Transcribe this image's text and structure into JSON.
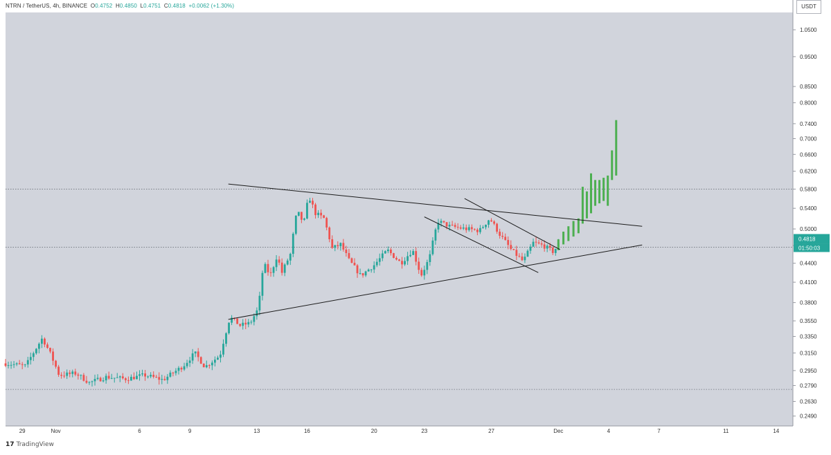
{
  "header": {
    "pair": "NTRN / TetherUS, 4h, BINANCE",
    "open_label": "O",
    "open": "0.4752",
    "high_label": "H",
    "high": "0.4850",
    "low_label": "L",
    "low": "0.4751",
    "close_label": "C",
    "close": "0.4818",
    "change": "+0.0062 (+1.30%)"
  },
  "currency_button": "USDT",
  "current_price_label": "0.4818",
  "countdown_label": "01:50:03",
  "footer": {
    "logo_mark": "17",
    "brand": "TradingView"
  },
  "colors": {
    "background": "#d1d4dc",
    "up": "#26a69a",
    "down": "#ef5350",
    "breakout": "#4caf50",
    "line": "#1a1a1a",
    "price_tag": "#26a69a"
  },
  "chart_data": {
    "type": "candlestick",
    "title": "NTRN / TetherUS, 4h, BINANCE",
    "scale": "log",
    "ylim": [
      0.24,
      1.12
    ],
    "y_ticks": [
      "1.0500",
      "0.9500",
      "0.8500",
      "0.8000",
      "0.7400",
      "0.7000",
      "0.6600",
      "0.6200",
      "0.5800",
      "0.5400",
      "0.5000",
      "0.4700",
      "0.4400",
      "0.4100",
      "0.3800",
      "0.3550",
      "0.3350",
      "0.3150",
      "0.2950",
      "0.2790",
      "0.2630",
      "0.2490"
    ],
    "x_ticks": [
      {
        "label": "29",
        "day": -2
      },
      {
        "label": "Nov",
        "day": 0
      },
      {
        "label": "6",
        "day": 5
      },
      {
        "label": "9",
        "day": 8
      },
      {
        "label": "13",
        "day": 12
      },
      {
        "label": "16",
        "day": 15
      },
      {
        "label": "20",
        "day": 19
      },
      {
        "label": "23",
        "day": 22
      },
      {
        "label": "27",
        "day": 26
      },
      {
        "label": "Dec",
        "day": 30
      },
      {
        "label": "4",
        "day": 33
      },
      {
        "label": "7",
        "day": 36
      },
      {
        "label": "11",
        "day": 40
      },
      {
        "label": "14",
        "day": 43
      }
    ],
    "x_range_days": [
      -3,
      44
    ],
    "horizontal_levels": [
      0.58,
      0.467,
      0.275
    ],
    "trendlines": [
      {
        "name": "triangle-upper",
        "from": [
          10.3,
          0.591
        ],
        "to": [
          35.0,
          0.505
        ]
      },
      {
        "name": "triangle-lower",
        "from": [
          10.3,
          0.357
        ],
        "to": [
          35.0,
          0.471
        ]
      },
      {
        "name": "channel-upper",
        "from": [
          24.4,
          0.56
        ],
        "to": [
          30.1,
          0.463
        ]
      },
      {
        "name": "channel-lower",
        "from": [
          22.0,
          0.523
        ],
        "to": [
          28.8,
          0.425
        ]
      }
    ],
    "breakout_bars": [
      {
        "day": 30.0,
        "low": 0.462,
        "high": 0.481
      },
      {
        "day": 30.3,
        "low": 0.472,
        "high": 0.495
      },
      {
        "day": 30.6,
        "low": 0.478,
        "high": 0.505
      },
      {
        "day": 30.9,
        "low": 0.486,
        "high": 0.515
      },
      {
        "day": 31.2,
        "low": 0.492,
        "high": 0.52
      },
      {
        "day": 31.45,
        "low": 0.51,
        "high": 0.585
      },
      {
        "day": 31.7,
        "low": 0.52,
        "high": 0.575
      },
      {
        "day": 31.95,
        "low": 0.53,
        "high": 0.615
      },
      {
        "day": 32.2,
        "low": 0.545,
        "high": 0.6
      },
      {
        "day": 32.45,
        "low": 0.55,
        "high": 0.6
      },
      {
        "day": 32.7,
        "low": 0.555,
        "high": 0.605
      },
      {
        "day": 32.95,
        "low": 0.545,
        "high": 0.61
      },
      {
        "day": 33.2,
        "low": 0.6,
        "high": 0.67
      },
      {
        "day": 33.45,
        "low": 0.61,
        "high": 0.75
      }
    ],
    "anchors": [
      [
        -3.0,
        0.303
      ],
      [
        -1.8,
        0.3
      ],
      [
        -0.8,
        0.333
      ],
      [
        -0.3,
        0.313
      ],
      [
        0.2,
        0.29
      ],
      [
        1.2,
        0.292
      ],
      [
        2.0,
        0.282
      ],
      [
        3.0,
        0.288
      ],
      [
        4.2,
        0.286
      ],
      [
        5.3,
        0.29
      ],
      [
        6.4,
        0.285
      ],
      [
        7.6,
        0.3
      ],
      [
        8.3,
        0.315
      ],
      [
        8.9,
        0.299
      ],
      [
        9.8,
        0.312
      ],
      [
        10.4,
        0.36
      ],
      [
        11.0,
        0.349
      ],
      [
        11.6,
        0.352
      ],
      [
        12.1,
        0.372
      ],
      [
        12.4,
        0.44
      ],
      [
        12.8,
        0.42
      ],
      [
        13.2,
        0.452
      ],
      [
        13.5,
        0.425
      ],
      [
        14.0,
        0.455
      ],
      [
        14.4,
        0.535
      ],
      [
        14.8,
        0.51
      ],
      [
        15.1,
        0.565
      ],
      [
        15.5,
        0.53
      ],
      [
        16.0,
        0.52
      ],
      [
        16.5,
        0.465
      ],
      [
        17.0,
        0.472
      ],
      [
        17.5,
        0.445
      ],
      [
        18.2,
        0.42
      ],
      [
        19.0,
        0.437
      ],
      [
        19.8,
        0.462
      ],
      [
        20.6,
        0.44
      ],
      [
        21.3,
        0.462
      ],
      [
        21.8,
        0.42
      ],
      [
        22.3,
        0.448
      ],
      [
        22.8,
        0.515
      ],
      [
        23.5,
        0.505
      ],
      [
        24.5,
        0.5
      ],
      [
        25.3,
        0.497
      ],
      [
        25.9,
        0.52
      ],
      [
        26.5,
        0.49
      ],
      [
        27.2,
        0.462
      ],
      [
        27.9,
        0.443
      ],
      [
        28.5,
        0.475
      ],
      [
        29.1,
        0.47
      ],
      [
        29.7,
        0.459
      ],
      [
        30.0,
        0.472
      ]
    ]
  }
}
